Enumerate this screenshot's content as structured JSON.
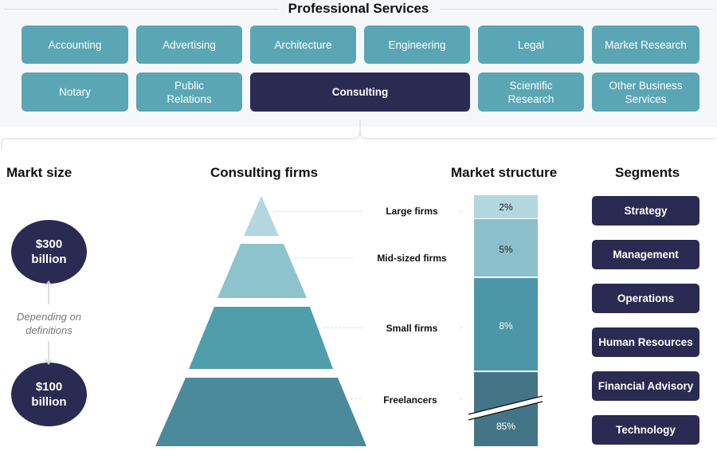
{
  "title": "Professional Services",
  "services": [
    "Accounting",
    "Advertising",
    "Architecture",
    "Engineering",
    "Legal",
    "Market Research",
    "Notary",
    "Public Relations",
    "Consulting",
    "Scientific Research",
    "Other Business Services"
  ],
  "selected": "Consulting",
  "market_size": {
    "heading": "Markt size",
    "high": "$300 billion",
    "low": "$100 billion",
    "note": "Depending on definitions"
  },
  "firms": {
    "heading": "Consulting firms",
    "levels": [
      "Large firms",
      "Mid-sized firms",
      "Small firms",
      "Freelancers"
    ]
  },
  "structure": {
    "heading": "Market structure",
    "values": [
      "2%",
      "5%",
      "8%",
      "85%"
    ]
  },
  "segments": {
    "heading": "Segments",
    "items": [
      "Strategy",
      "Management",
      "Operations",
      "Human Resources",
      "Financial Advisory",
      "Technology"
    ]
  },
  "colors": {
    "teal": "#5ba6b5",
    "navy": "#2b2a52"
  }
}
